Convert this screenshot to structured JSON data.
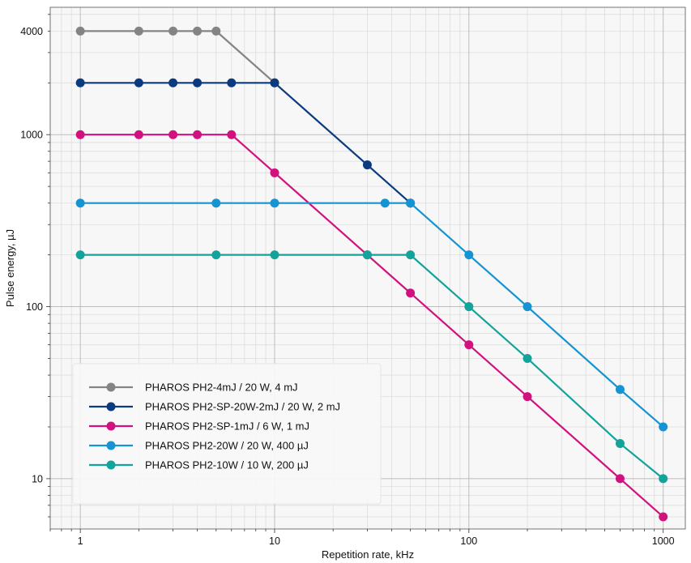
{
  "chart_data": {
    "type": "line",
    "xlabel": "Repetition rate, kHz",
    "ylabel": "Pulse energy, µJ",
    "x_scale": "log",
    "y_scale": "log",
    "xlim": [
      0.7,
      1300
    ],
    "ylim": [
      5.1,
      5500
    ],
    "x_ticks": [
      1,
      10,
      100,
      1000
    ],
    "x_tick_labels": [
      "1",
      "10",
      "100",
      "1000"
    ],
    "y_ticks": [
      10,
      100,
      1000,
      4000
    ],
    "y_tick_labels": [
      "10",
      "100",
      "1000",
      "4000"
    ],
    "grid": true,
    "legend_position": "lower-left",
    "background_color": "#f7f7f7",
    "series": [
      {
        "name": "PHAROS PH2-4mJ / 20 W, 4 mJ",
        "color": "#848484",
        "x": [
          1,
          2,
          3,
          4,
          5,
          10
        ],
        "y": [
          4000,
          4000,
          4000,
          4000,
          4000,
          2000
        ]
      },
      {
        "name": "PHAROS PH2-SP-20W-2mJ / 20 W, 2 mJ",
        "color": "#0b3a7e",
        "x": [
          1,
          2,
          3,
          4,
          6,
          10,
          30,
          50
        ],
        "y": [
          2000,
          2000,
          2000,
          2000,
          2000,
          2000,
          667,
          400
        ]
      },
      {
        "name": "PHAROS PH2-SP-1mJ / 6 W, 1 mJ",
        "color": "#d1127e",
        "x": [
          1,
          2,
          3,
          4,
          6,
          10,
          30,
          50,
          100,
          200,
          600,
          1000
        ],
        "y": [
          1000,
          1000,
          1000,
          1000,
          1000,
          600,
          200,
          120,
          60,
          30,
          10,
          6
        ]
      },
      {
        "name": "PHAROS PH2-20W / 20 W, 400 µJ",
        "color": "#1593d3",
        "x": [
          1,
          5,
          10,
          37,
          50,
          100,
          200,
          600,
          1000
        ],
        "y": [
          400,
          400,
          400,
          400,
          400,
          200,
          100,
          33,
          20
        ]
      },
      {
        "name": "PHAROS PH2-10W / 10 W, 200 µJ",
        "color": "#13a39a",
        "x": [
          1,
          5,
          10,
          30,
          50,
          100,
          200,
          600,
          1000
        ],
        "y": [
          200,
          200,
          200,
          200,
          200,
          100,
          50,
          16,
          10
        ]
      }
    ]
  }
}
